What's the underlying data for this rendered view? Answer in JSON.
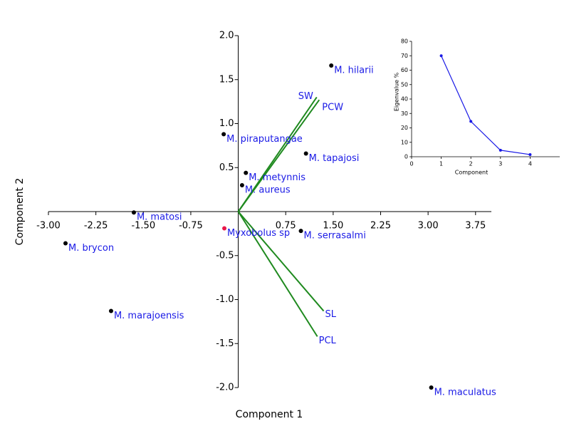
{
  "chart_data": [
    {
      "type": "biplot",
      "xlabel": "Component 1",
      "ylabel": "Component 2",
      "xlim": [
        -3,
        4
      ],
      "ylim": [
        -2,
        2
      ],
      "xticks": [
        {
          "value": -3,
          "label": "-3.00"
        },
        -2.25,
        {
          "value": -1.5,
          "label": "-1.50"
        },
        -0.75,
        0.75,
        {
          "value": 1.5,
          "label": "1.50"
        },
        2.25,
        {
          "value": 3,
          "label": "3.00"
        },
        3.75
      ],
      "yticks": [
        {
          "value": -2,
          "label": "-2.0"
        },
        -1.5,
        {
          "value": -1,
          "label": "-1.0"
        },
        -0.5,
        0.5,
        {
          "value": 1,
          "label": "1.0"
        },
        1.5,
        {
          "value": 2,
          "label": "2.0"
        }
      ],
      "points": {
        "labels": [
          "M. hilarii",
          "M. piraputangae",
          "M. tapajosi",
          "M. metynnis",
          "M. aureus",
          "M. matosi",
          "Myxobolus sp",
          "M. serrasalmi",
          "M. brycon",
          "M. marajoensis",
          "M. maculatus"
        ],
        "x": [
          1.47,
          -0.23,
          1.07,
          0.12,
          0.06,
          -1.65,
          -0.22,
          0.99,
          -2.73,
          -2.01,
          3.05
        ],
        "y": [
          1.66,
          0.88,
          0.66,
          0.44,
          0.3,
          -0.01,
          -0.19,
          -0.22,
          -0.36,
          -1.13,
          -2.0
        ],
        "colors": [
          "#000000",
          "#000000",
          "#000000",
          "#000000",
          "#000000",
          "#000000",
          "#e8174a",
          "#000000",
          "#000000",
          "#000000",
          "#000000"
        ]
      },
      "vectors": {
        "names": [
          "SW",
          "PCW",
          "SL",
          "PCL"
        ],
        "x": [
          1.24,
          1.28,
          1.35,
          1.25
        ],
        "y": [
          1.3,
          1.27,
          -1.13,
          -1.42
        ],
        "color": "#1f8a1f"
      }
    },
    {
      "type": "line",
      "xlabel": "Component",
      "ylabel": "Eigenvalue %",
      "xlim": [
        0,
        5
      ],
      "ylim": [
        0,
        80
      ],
      "xticks": [
        0,
        1,
        2,
        3,
        4
      ],
      "yticks": [
        0,
        10,
        20,
        30,
        40,
        50,
        60,
        70,
        80
      ],
      "x": [
        1,
        2,
        3,
        4
      ],
      "values": [
        70,
        24.5,
        4.5,
        1.5
      ],
      "color": "#1a1ae6"
    }
  ]
}
